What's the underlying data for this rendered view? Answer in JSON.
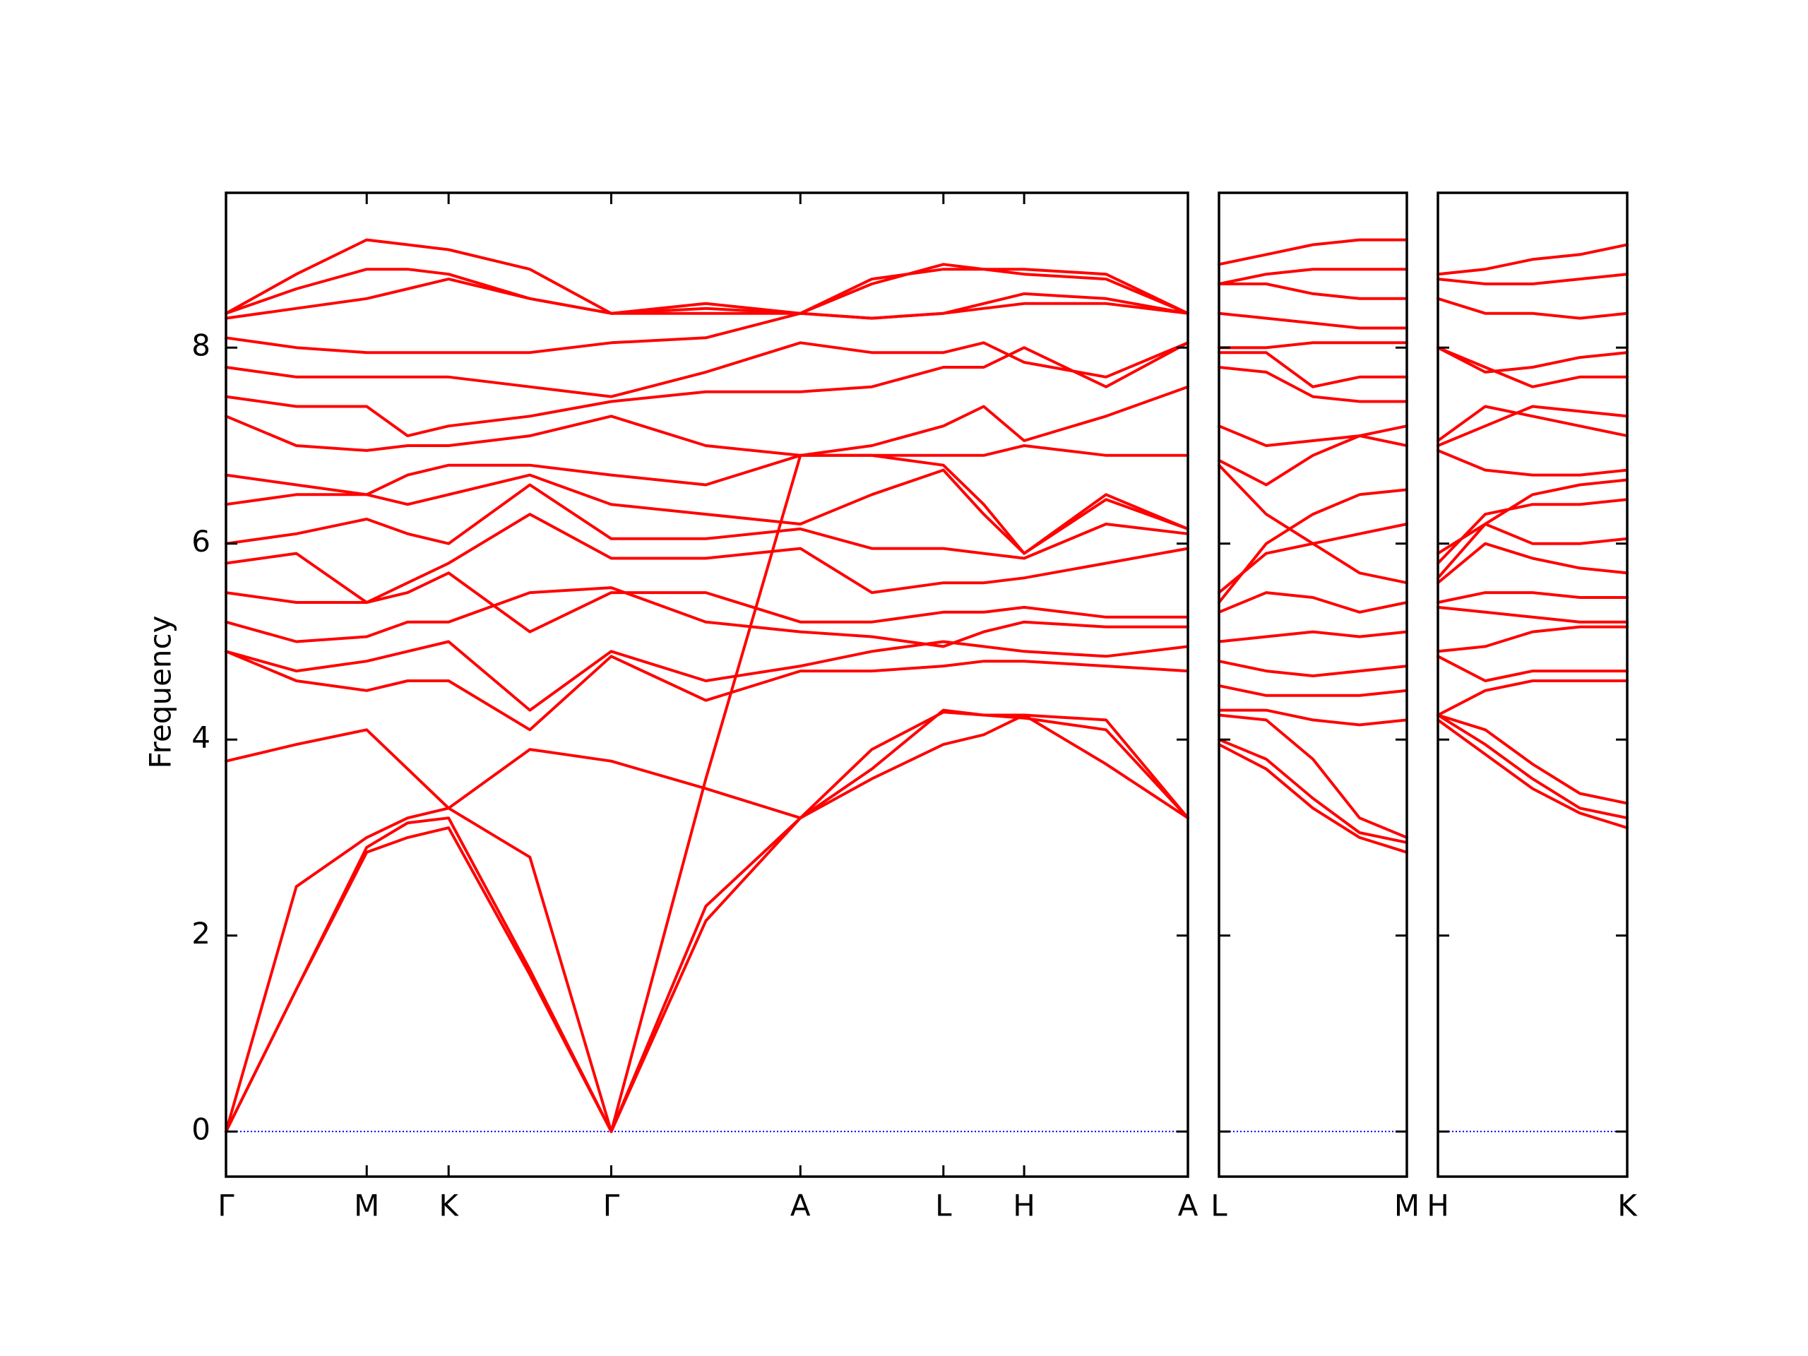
{
  "chart_data": [
    {
      "type": "line",
      "ylabel": "Frequency",
      "color": "#ff0000",
      "show_ytick_labels": true,
      "hline": 0,
      "hline_color": "#0000ff",
      "xlim": [
        0,
        8.34
      ],
      "ylim": [
        -0.46,
        9.58
      ],
      "yticks": [
        0,
        2,
        4,
        6,
        8
      ],
      "xticks": [
        {
          "value": 0,
          "label": "Γ"
        },
        {
          "value": 1.22,
          "label": "M"
        },
        {
          "value": 1.93,
          "label": "K"
        },
        {
          "value": 3.34,
          "label": "Γ"
        },
        {
          "value": 4.98,
          "label": "A"
        },
        {
          "value": 6.22,
          "label": "L"
        },
        {
          "value": 6.92,
          "label": "H"
        },
        {
          "value": 8.34,
          "label": "A"
        }
      ],
      "x": [
        0,
        0.61,
        1.22,
        1.575,
        1.93,
        2.635,
        3.34,
        4.16,
        4.98,
        5.6,
        6.22,
        6.57,
        6.92,
        7.63,
        8.34
      ],
      "series": [
        {
          "values": [
            0,
            1.45,
            2.85,
            3.0,
            3.1,
            1.6,
            0,
            2.15,
            3.2,
            3.6,
            3.95,
            4.05,
            4.25,
            3.75,
            3.2
          ]
        },
        {
          "values": [
            0,
            1.45,
            2.9,
            3.15,
            3.2,
            1.65,
            0,
            2.3,
            3.2,
            3.9,
            4.28,
            4.25,
            4.22,
            4.1,
            3.2
          ]
        },
        {
          "values": [
            0,
            2.5,
            3.0,
            3.2,
            3.3,
            2.8,
            0,
            3.6,
            6.9,
            6.9,
            6.8,
            6.4,
            5.9,
            6.5,
            6.15
          ]
        },
        {
          "values": [
            3.78,
            3.95,
            4.1,
            3.7,
            3.3,
            3.9,
            3.78,
            3.5,
            3.2,
            3.7,
            4.3,
            4.25,
            4.25,
            4.2,
            3.2
          ]
        },
        {
          "values": [
            4.9,
            4.6,
            4.5,
            4.6,
            4.6,
            4.1,
            4.85,
            4.4,
            4.7,
            4.7,
            4.75,
            4.8,
            4.8,
            4.75,
            4.7
          ]
        },
        {
          "values": [
            4.9,
            4.7,
            4.8,
            4.9,
            5.0,
            4.3,
            4.9,
            4.6,
            4.75,
            4.9,
            5.0,
            4.95,
            4.9,
            4.85,
            4.95
          ]
        },
        {
          "values": [
            5.2,
            5.0,
            5.05,
            5.2,
            5.2,
            5.5,
            5.55,
            5.2,
            5.1,
            5.05,
            4.95,
            5.1,
            5.2,
            5.15,
            5.15
          ]
        },
        {
          "values": [
            5.5,
            5.4,
            5.4,
            5.5,
            5.7,
            5.1,
            5.5,
            5.5,
            5.2,
            5.2,
            5.3,
            5.3,
            5.35,
            5.25,
            5.25
          ]
        },
        {
          "values": [
            5.8,
            5.9,
            5.4,
            5.6,
            5.8,
            6.3,
            5.85,
            5.85,
            5.95,
            5.5,
            5.6,
            5.6,
            5.65,
            5.8,
            5.95
          ]
        },
        {
          "values": [
            6.0,
            6.1,
            6.25,
            6.1,
            6.0,
            6.6,
            6.05,
            6.05,
            6.15,
            5.95,
            5.95,
            5.9,
            5.85,
            6.2,
            6.1
          ]
        },
        {
          "values": [
            6.4,
            6.5,
            6.5,
            6.4,
            6.5,
            6.7,
            6.4,
            6.3,
            6.2,
            6.5,
            6.75,
            6.3,
            5.9,
            6.45,
            6.15
          ]
        },
        {
          "values": [
            6.7,
            6.6,
            6.5,
            6.7,
            6.8,
            6.8,
            6.7,
            6.6,
            6.9,
            6.9,
            6.9,
            6.9,
            7.0,
            6.9,
            6.9
          ]
        },
        {
          "values": [
            7.3,
            7.0,
            6.95,
            7.0,
            7.0,
            7.1,
            7.3,
            7.0,
            6.9,
            7.0,
            7.2,
            7.4,
            7.05,
            7.3,
            7.6
          ]
        },
        {
          "values": [
            7.5,
            7.4,
            7.4,
            7.1,
            7.2,
            7.3,
            7.45,
            7.55,
            7.55,
            7.6,
            7.8,
            7.8,
            8.0,
            7.6,
            8.05
          ]
        },
        {
          "values": [
            7.8,
            7.7,
            7.7,
            7.7,
            7.7,
            7.6,
            7.5,
            7.75,
            8.05,
            7.95,
            7.95,
            8.05,
            7.85,
            7.7,
            8.05
          ]
        },
        {
          "values": [
            8.1,
            8.0,
            7.95,
            7.95,
            7.95,
            7.95,
            8.05,
            8.1,
            8.35,
            8.3,
            8.35,
            8.45,
            8.55,
            8.5,
            8.35
          ]
        },
        {
          "values": [
            8.3,
            8.4,
            8.5,
            8.6,
            8.7,
            8.5,
            8.35,
            8.4,
            8.35,
            8.65,
            8.85,
            8.8,
            8.75,
            8.7,
            8.35
          ]
        },
        {
          "values": [
            8.35,
            8.75,
            9.1,
            9.05,
            9.0,
            8.8,
            8.35,
            8.45,
            8.35,
            8.7,
            8.8,
            8.8,
            8.8,
            8.75,
            8.35
          ]
        },
        {
          "values": [
            8.35,
            8.6,
            8.8,
            8.8,
            8.75,
            8.5,
            8.35,
            8.35,
            8.35,
            8.3,
            8.35,
            8.4,
            8.45,
            8.45,
            8.35
          ]
        }
      ]
    },
    {
      "type": "line",
      "color": "#ff0000",
      "show_ytick_labels": false,
      "hline": 0,
      "hline_color": "#0000ff",
      "xlim": [
        0,
        1.63
      ],
      "ylim": [
        -0.46,
        9.58
      ],
      "yticks": [
        0,
        2,
        4,
        6,
        8
      ],
      "xticks": [
        {
          "value": 0,
          "label": "L"
        },
        {
          "value": 1.63,
          "label": "M"
        }
      ],
      "x": [
        0,
        0.41,
        0.815,
        1.22,
        1.63
      ],
      "series": [
        {
          "values": [
            3.95,
            3.7,
            3.3,
            3.0,
            2.85
          ]
        },
        {
          "values": [
            4.0,
            3.8,
            3.4,
            3.05,
            2.95
          ]
        },
        {
          "values": [
            4.25,
            4.2,
            3.8,
            3.2,
            3.0
          ]
        },
        {
          "values": [
            4.3,
            4.3,
            4.2,
            4.15,
            4.2
          ]
        },
        {
          "values": [
            4.55,
            4.45,
            4.45,
            4.45,
            4.5
          ]
        },
        {
          "values": [
            4.8,
            4.7,
            4.65,
            4.7,
            4.75
          ]
        },
        {
          "values": [
            5.0,
            5.05,
            5.1,
            5.05,
            5.1
          ]
        },
        {
          "values": [
            5.3,
            5.5,
            5.45,
            5.3,
            5.4
          ]
        },
        {
          "values": [
            5.5,
            5.9,
            6.0,
            6.1,
            6.2
          ]
        },
        {
          "values": [
            5.4,
            6.0,
            6.3,
            6.5,
            6.55
          ]
        },
        {
          "values": [
            6.8,
            6.3,
            6.0,
            5.7,
            5.6
          ]
        },
        {
          "values": [
            6.85,
            6.6,
            6.9,
            7.1,
            7.2
          ]
        },
        {
          "values": [
            7.2,
            7.0,
            7.05,
            7.1,
            7.0
          ]
        },
        {
          "values": [
            7.8,
            7.75,
            7.5,
            7.45,
            7.45
          ]
        },
        {
          "values": [
            7.95,
            7.95,
            7.6,
            7.7,
            7.7
          ]
        },
        {
          "values": [
            8.0,
            8.0,
            8.05,
            8.05,
            8.05
          ]
        },
        {
          "values": [
            8.35,
            8.3,
            8.25,
            8.2,
            8.2
          ]
        },
        {
          "values": [
            8.65,
            8.65,
            8.55,
            8.5,
            8.5
          ]
        },
        {
          "values": [
            8.65,
            8.75,
            8.8,
            8.8,
            8.8
          ]
        },
        {
          "values": [
            8.85,
            8.95,
            9.05,
            9.1,
            9.1
          ]
        }
      ]
    },
    {
      "type": "line",
      "color": "#ff0000",
      "show_ytick_labels": false,
      "hline": 0,
      "hline_color": "#0000ff",
      "xlim": [
        0,
        1.64
      ],
      "ylim": [
        -0.46,
        9.58
      ],
      "yticks": [
        0,
        2,
        4,
        6,
        8
      ],
      "xticks": [
        {
          "value": 0,
          "label": "H"
        },
        {
          "value": 1.64,
          "label": "K"
        }
      ],
      "x": [
        0,
        0.41,
        0.82,
        1.23,
        1.64
      ],
      "series": [
        {
          "values": [
            4.2,
            3.85,
            3.5,
            3.25,
            3.1
          ]
        },
        {
          "values": [
            4.25,
            3.95,
            3.6,
            3.3,
            3.2
          ]
        },
        {
          "values": [
            4.25,
            4.1,
            3.75,
            3.45,
            3.35
          ]
        },
        {
          "values": [
            4.25,
            4.5,
            4.6,
            4.6,
            4.6
          ]
        },
        {
          "values": [
            4.85,
            4.6,
            4.7,
            4.7,
            4.7
          ]
        },
        {
          "values": [
            4.9,
            4.95,
            5.1,
            5.15,
            5.15
          ]
        },
        {
          "values": [
            5.35,
            5.3,
            5.25,
            5.2,
            5.2
          ]
        },
        {
          "values": [
            5.4,
            5.5,
            5.5,
            5.45,
            5.45
          ]
        },
        {
          "values": [
            5.6,
            6.0,
            5.85,
            5.75,
            5.7
          ]
        },
        {
          "values": [
            5.65,
            6.2,
            6.0,
            6.0,
            6.05
          ]
        },
        {
          "values": [
            5.8,
            6.3,
            6.4,
            6.4,
            6.45
          ]
        },
        {
          "values": [
            5.9,
            6.2,
            6.5,
            6.6,
            6.65
          ]
        },
        {
          "values": [
            6.95,
            6.75,
            6.7,
            6.7,
            6.75
          ]
        },
        {
          "values": [
            7.05,
            7.4,
            7.3,
            7.2,
            7.1
          ]
        },
        {
          "values": [
            7.0,
            7.2,
            7.4,
            7.35,
            7.3
          ]
        },
        {
          "values": [
            8.0,
            7.8,
            7.6,
            7.7,
            7.7
          ]
        },
        {
          "values": [
            8.0,
            7.75,
            7.8,
            7.9,
            7.95
          ]
        },
        {
          "values": [
            8.5,
            8.35,
            8.35,
            8.3,
            8.35
          ]
        },
        {
          "values": [
            8.7,
            8.65,
            8.65,
            8.7,
            8.75
          ]
        },
        {
          "values": [
            8.75,
            8.8,
            8.9,
            8.95,
            9.05
          ]
        }
      ]
    }
  ]
}
